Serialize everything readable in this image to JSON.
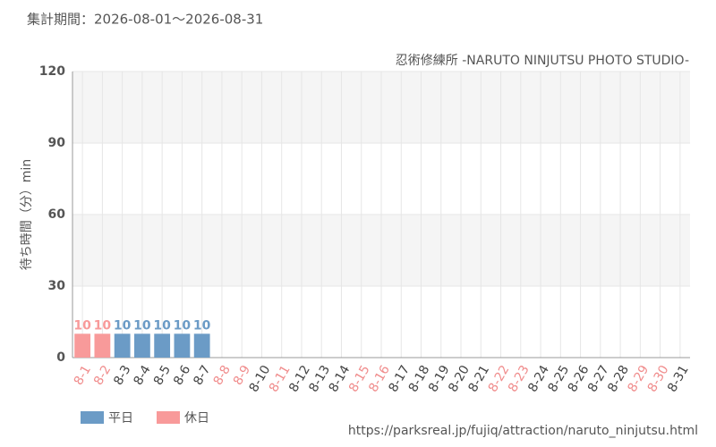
{
  "chart_data": {
    "type": "bar",
    "title": "集計期間：2026-08-01～2026-08-31",
    "subtitle": "忍術修練所 -NARUTO NINJUTSU PHOTO STUDIO-",
    "y_label": "待ち時間（分）min",
    "source": "https://parksreal.jp/fujiq/attraction/naruto_ninjutsu.html",
    "categories": [
      "8-1",
      "8-2",
      "8-3",
      "8-4",
      "8-5",
      "8-6",
      "8-7",
      "8-8",
      "8-9",
      "8-10",
      "8-11",
      "8-12",
      "8-13",
      "8-14",
      "8-15",
      "8-16",
      "8-17",
      "8-18",
      "8-19",
      "8-20",
      "8-21",
      "8-22",
      "8-23",
      "8-24",
      "8-25",
      "8-26",
      "8-27",
      "8-28",
      "8-29",
      "8-30",
      "8-31"
    ],
    "category_colors": [
      "#f08c8c",
      "#f08c8c",
      "#444444",
      "#444444",
      "#444444",
      "#444444",
      "#444444",
      "#f08c8c",
      "#f08c8c",
      "#444444",
      "#f08c8c",
      "#444444",
      "#444444",
      "#444444",
      "#f08c8c",
      "#f08c8c",
      "#444444",
      "#444444",
      "#444444",
      "#444444",
      "#444444",
      "#f08c8c",
      "#f08c8c",
      "#444444",
      "#444444",
      "#444444",
      "#444444",
      "#444444",
      "#f08c8c",
      "#f08c8c",
      "#444444"
    ],
    "series": [
      {
        "name": "平日",
        "color": "#6b9bc6",
        "values": [
          null,
          null,
          10,
          10,
          10,
          10,
          10,
          null,
          null,
          null,
          null,
          null,
          null,
          null,
          null,
          null,
          null,
          null,
          null,
          null,
          null,
          null,
          null,
          null,
          null,
          null,
          null,
          null,
          null,
          null,
          null
        ]
      },
      {
        "name": "休日",
        "color": "#f89a9a",
        "values": [
          10,
          10,
          null,
          null,
          null,
          null,
          null,
          null,
          null,
          null,
          null,
          null,
          null,
          null,
          null,
          null,
          null,
          null,
          null,
          null,
          null,
          null,
          null,
          null,
          null,
          null,
          null,
          null,
          null,
          null,
          null
        ]
      }
    ],
    "ylim": [
      0,
      120
    ],
    "yticks": [
      0,
      30,
      60,
      90,
      120
    ],
    "grid": true
  }
}
